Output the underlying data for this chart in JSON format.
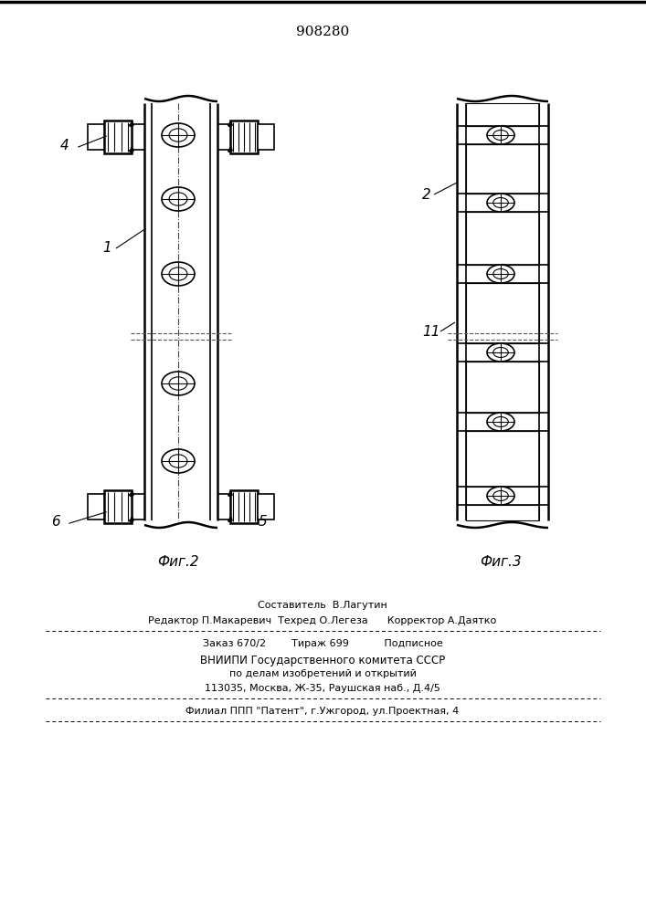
{
  "patent_number": "908280",
  "fig2_label": "Фиг.2",
  "fig3_label": "Фиг.3",
  "bg_color": "#ffffff",
  "line_color": "#000000",
  "footer_lines": [
    "Составитель  В.Лагутин",
    "Редактор П.Макаревич  Техред О.Легеза      Корректор А.Даятко",
    "Заказ 670/2        Тираж 699           Подписное",
    "ВНИИПИ Государственного комитета СССР",
    "по делам изобретений и открытий",
    "113035, Москва, Ж-35, Раушская наб., Д.4/5",
    "Филиал ППП \"Патент\", г.Ужгород, ул.Проектная, 4"
  ]
}
